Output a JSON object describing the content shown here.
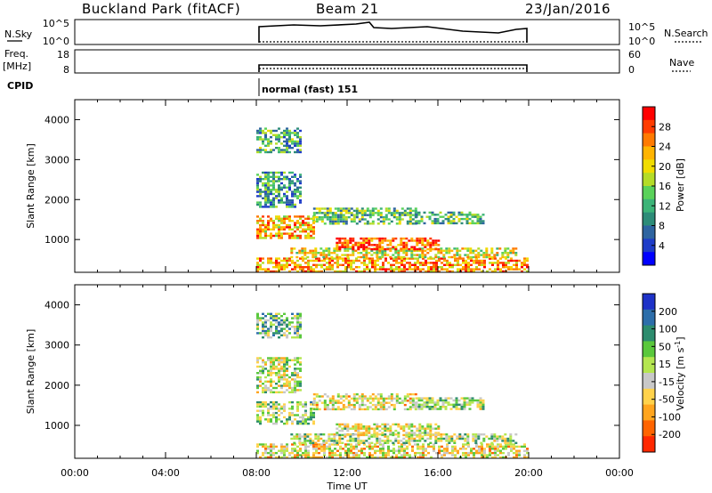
{
  "header": {
    "station": "Buckland Park (fitACF)",
    "beam": "Beam 21",
    "date": "23/Jan/2016"
  },
  "strips": {
    "nsky_label": "N.Sky",
    "nsky_left_ticks": [
      "10^5",
      "10^0"
    ],
    "nsky_right_ticks": [
      "10^5",
      "10^0"
    ],
    "nsearch_label": "N.Search",
    "freq_label": "Freq.",
    "freq_unit": "[MHz]",
    "freq_ticks": [
      "18",
      "8"
    ],
    "nave_ticks": [
      "60",
      "0"
    ],
    "nave_label": "Nave",
    "cpid_label": "CPID",
    "cpid_value": "normal (fast) 151"
  },
  "colorbars": {
    "power_label": "Power [dB]",
    "power_ticks": [
      "28",
      "24",
      "20",
      "16",
      "12",
      "8",
      "4"
    ],
    "power_colors": [
      "#ff0000",
      "#ff3c00",
      "#ff7a00",
      "#ffb400",
      "#f0dc00",
      "#b4dc28",
      "#5ad25a",
      "#3cb478",
      "#2d8c78",
      "#2e64a0",
      "#1e3cc8",
      "#0000ff"
    ],
    "velocity_label": "Velocity [m s",
    "velocity_sup": "-1",
    "velocity_ticks": [
      "200",
      "100",
      "50",
      "15",
      "-15",
      "-50",
      "-100",
      "-200"
    ],
    "velocity_colors": [
      "#1e32c8",
      "#2d6eaa",
      "#2d8c6e",
      "#5ac83c",
      "#b4e650",
      "#c8c8c8",
      "#ffd24b",
      "#ffa51e",
      "#ff6400",
      "#ff2800"
    ]
  },
  "chart_data": [
    {
      "type": "heatmap",
      "name": "power",
      "xlabel": "",
      "ylabel": "Slant Range [km]",
      "xlim": [
        0,
        24
      ],
      "ylim": [
        180,
        4500
      ],
      "yticks": [
        1000,
        2000,
        3000,
        4000
      ],
      "cbar_range": [
        0,
        30
      ],
      "cbar_label": "Power [dB]",
      "echo_regions": [
        {
          "x": [
            8.0,
            20.0
          ],
          "y": [
            200,
            550
          ],
          "value": 22
        },
        {
          "x": [
            9.5,
            19.5
          ],
          "y": [
            550,
            800
          ],
          "value": 18
        },
        {
          "x": [
            11.5,
            16.0
          ],
          "y": [
            750,
            1050
          ],
          "value": 26
        },
        {
          "x": [
            8.0,
            10.5
          ],
          "y": [
            1050,
            1600
          ],
          "value": 21
        },
        {
          "x": [
            10.5,
            15.0
          ],
          "y": [
            1400,
            1800
          ],
          "value": 13
        },
        {
          "x": [
            15.0,
            18.0
          ],
          "y": [
            1400,
            1700
          ],
          "value": 12
        },
        {
          "x": [
            8.0,
            10.0
          ],
          "y": [
            1800,
            2700
          ],
          "value": 10
        },
        {
          "x": [
            8.0,
            10.0
          ],
          "y": [
            3200,
            3800
          ],
          "value": 11
        }
      ]
    },
    {
      "type": "heatmap",
      "name": "velocity",
      "xlabel": "Time UT",
      "ylabel": "Slant Range [km]",
      "xlim": [
        0,
        24
      ],
      "ylim": [
        180,
        4500
      ],
      "xticks": [
        "00:00",
        "04:00",
        "08:00",
        "12:00",
        "16:00",
        "20:00",
        "00:00"
      ],
      "yticks": [
        1000,
        2000,
        3000,
        4000
      ],
      "cbar_range": [
        -250,
        250
      ],
      "cbar_label": "Velocity [m s-1]",
      "echo_regions": [
        {
          "x": [
            8.0,
            20.0
          ],
          "y": [
            200,
            550
          ],
          "value": -40
        },
        {
          "x": [
            9.5,
            19.5
          ],
          "y": [
            550,
            800
          ],
          "value": 10
        },
        {
          "x": [
            11.5,
            16.0
          ],
          "y": [
            750,
            1050
          ],
          "value": -20
        },
        {
          "x": [
            8.0,
            10.5
          ],
          "y": [
            1050,
            1600
          ],
          "value": 30
        },
        {
          "x": [
            10.5,
            15.0
          ],
          "y": [
            1400,
            1800
          ],
          "value": -30
        },
        {
          "x": [
            15.0,
            18.0
          ],
          "y": [
            1400,
            1700
          ],
          "value": 20
        },
        {
          "x": [
            8.0,
            10.0
          ],
          "y": [
            1800,
            2700
          ],
          "value": -10
        },
        {
          "x": [
            8.0,
            10.0
          ],
          "y": [
            3200,
            3800
          ],
          "value": 60
        }
      ]
    }
  ]
}
